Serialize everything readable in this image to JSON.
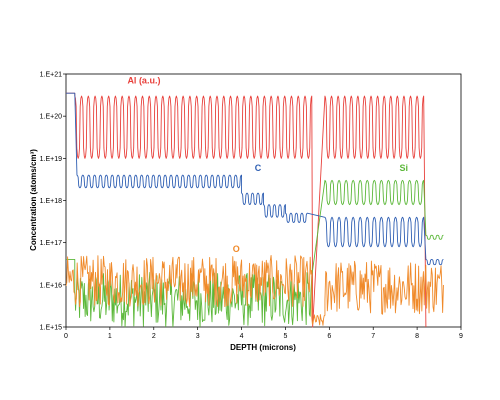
{
  "chart_data": {
    "type": "line",
    "title": "",
    "xlabel": "DEPTH (microns)",
    "ylabel": "Concentration (atoms/cm³)",
    "xlim": [
      0,
      9
    ],
    "ylim": [
      1000000000000000.0,
      1e+21
    ],
    "yscale": "log",
    "grid": false,
    "x_ticks": [
      0,
      1,
      2,
      3,
      4,
      5,
      6,
      7,
      8,
      9
    ],
    "x_tick_labels": [
      "0",
      "1",
      "2",
      "3",
      "4",
      "5",
      "6",
      "7",
      "8",
      "9"
    ],
    "y_ticks": [
      1000000000000000.0,
      1e+16,
      1e+17,
      1e+18,
      1e+19,
      1e+20,
      1e+21
    ],
    "y_tick_labels": [
      "1.E+15",
      "1.E+16",
      "1.E+17",
      "1.E+18",
      "1.E+19",
      "1.E+20",
      "1.E+21"
    ],
    "series": [
      {
        "name": "Al (a.u.)",
        "color": "#e8413c",
        "segments": [
          {
            "x_start": 0.0,
            "x_end": 0.2,
            "high": 3.5e+20,
            "low": 3.5e+20,
            "periods": 0
          },
          {
            "x_start": 0.2,
            "x_end": 5.6,
            "high": 3e+20,
            "low": 1e+19,
            "periods": 35
          },
          {
            "x_start": 5.9,
            "x_end": 8.15,
            "high": 3e+20,
            "low": 1e+19,
            "periods": 15
          }
        ],
        "drop_points": [
          [
            5.62,
            1000000000000000.0
          ],
          [
            8.2,
            1000000000000000.0
          ]
        ]
      },
      {
        "name": "C",
        "color": "#2f5fb3",
        "segments": [
          {
            "x_start": 0.0,
            "x_end": 0.2,
            "high": 3.5e+20,
            "low": 3.5e+20,
            "periods": 0
          },
          {
            "x_start": 0.25,
            "x_end": 4.0,
            "high": 4e+18,
            "low": 2e+18,
            "periods": 28
          },
          {
            "x_start": 4.0,
            "x_end": 4.5,
            "high": 1.5e+18,
            "low": 8e+17,
            "periods": 4
          },
          {
            "x_start": 4.5,
            "x_end": 5.0,
            "high": 8e+17,
            "low": 4e+17,
            "periods": 4
          },
          {
            "x_start": 5.0,
            "x_end": 5.5,
            "high": 5e+17,
            "low": 3e+17,
            "periods": 4
          },
          {
            "x_start": 5.9,
            "x_end": 8.15,
            "high": 4e+17,
            "low": 8e+16,
            "periods": 14
          },
          {
            "x_start": 8.2,
            "x_end": 8.6,
            "high": 4e+16,
            "low": 3e+16,
            "periods": 3
          }
        ]
      },
      {
        "name": "Si",
        "color": "#5cb83a",
        "segments": [
          {
            "x_start": 0.0,
            "x_end": 0.2,
            "high": 4e+16,
            "low": 4e+16,
            "periods": 0
          },
          {
            "x_start": 0.2,
            "x_end": 5.6,
            "high": 2e+16,
            "low": 1000000000000000.0,
            "periods": 0,
            "noise": true
          },
          {
            "x_start": 5.9,
            "x_end": 8.15,
            "high": 3e+18,
            "low": 8e+17,
            "periods": 14
          },
          {
            "x_start": 8.2,
            "x_end": 8.6,
            "high": 1.5e+17,
            "low": 1.2e+17,
            "periods": 3
          }
        ]
      },
      {
        "name": "O",
        "color": "#f08a2a",
        "segments": [
          {
            "x_start": 0.0,
            "x_end": 5.6,
            "high": 5e+16,
            "low": 3000000000000000.0,
            "periods": 0,
            "noise": true
          },
          {
            "x_start": 5.6,
            "x_end": 5.9,
            "high": 2000000000000000.0,
            "low": 1000000000000000.0,
            "periods": 0,
            "noise": true
          },
          {
            "x_start": 5.9,
            "x_end": 8.6,
            "high": 4e+16,
            "low": 2000000000000000.0,
            "periods": 0,
            "noise": true
          }
        ]
      }
    ],
    "annotations": [
      {
        "text": "Al (a.u.)",
        "series": "Al (a.u.)",
        "x": 1.4,
        "y": 6e+20
      },
      {
        "text": "C",
        "series": "C",
        "x": 4.3,
        "y": 5e+18
      },
      {
        "text": "Si",
        "series": "Si",
        "x": 7.6,
        "y": 5e+18
      },
      {
        "text": "O",
        "series": "O",
        "x": 3.8,
        "y": 6e+16
      }
    ]
  }
}
